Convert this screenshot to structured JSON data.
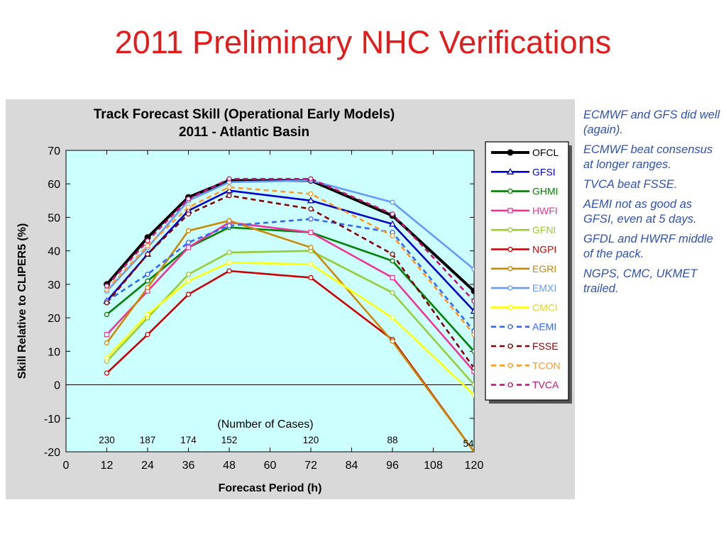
{
  "slide": {
    "title": "2011 Preliminary NHC Verifications"
  },
  "notes": [
    "ECMWF and GFS did well (again).",
    "ECMWF beat consensus at longer ranges.",
    "TVCA beat FSSE.",
    "AEMI not as good as GFSI, even at 5 days.",
    "GFDL and HWRF middle of the pack.",
    "NGPS, CMC, UKMET trailed."
  ],
  "chart_data": {
    "type": "line",
    "title": "Track Forecast Skill (Operational Early Models)",
    "subtitle": "2011 - Atlantic Basin",
    "xlabel": "Forecast Period (h)",
    "ylabel": "Skill Relative to CLIPER5 (%)",
    "xlim": [
      0,
      120
    ],
    "ylim": [
      -20,
      70
    ],
    "xticks": [
      0,
      12,
      24,
      36,
      48,
      60,
      72,
      84,
      96,
      108,
      120
    ],
    "yticks": [
      -20,
      -10,
      0,
      10,
      20,
      30,
      40,
      50,
      60,
      70
    ],
    "x": [
      12,
      24,
      36,
      48,
      72,
      96,
      120
    ],
    "grid": false,
    "legend_position": "right",
    "background_color": "#ccffff",
    "cases_label": "(Number of Cases)",
    "cases": [
      {
        "x": 12,
        "label": "230"
      },
      {
        "x": 24,
        "label": "187"
      },
      {
        "x": 36,
        "label": "174"
      },
      {
        "x": 48,
        "label": "152"
      },
      {
        "x": 72,
        "label": "120"
      },
      {
        "x": 96,
        "label": "88"
      },
      {
        "x": 120,
        "label": "54"
      }
    ],
    "series": [
      {
        "name": "OFCL",
        "color": "#000000",
        "dash": "solid",
        "marker": "dot",
        "values": [
          30,
          44,
          56,
          61,
          61,
          50.5,
          28
        ]
      },
      {
        "name": "GFSI",
        "color": "#0000cc",
        "dash": "solid",
        "marker": "triangle",
        "values": [
          25,
          39,
          52,
          58,
          55,
          48,
          22
        ]
      },
      {
        "name": "GHMI",
        "color": "#008000",
        "dash": "solid",
        "marker": "circle",
        "values": [
          21,
          31,
          41,
          47,
          45.5,
          37,
          10
        ]
      },
      {
        "name": "HWFI",
        "color": "#ee3399",
        "dash": "solid",
        "marker": "square",
        "values": [
          15,
          28,
          41,
          48.5,
          45.5,
          32,
          4
        ]
      },
      {
        "name": "GFNI",
        "color": "#99cc33",
        "dash": "solid",
        "marker": "circle",
        "values": [
          7,
          20,
          33,
          39.5,
          40,
          27.5,
          0
        ]
      },
      {
        "name": "NGPI",
        "color": "#cc0000",
        "dash": "solid",
        "marker": "circle",
        "values": [
          3.5,
          15,
          27,
          34,
          32,
          13.5,
          -20
        ]
      },
      {
        "name": "EGRI",
        "color": "#cc8800",
        "dash": "solid",
        "marker": "circle",
        "values": [
          12.5,
          29,
          46,
          49,
          41,
          13,
          -20
        ]
      },
      {
        "name": "EMXI",
        "color": "#6699ff",
        "dash": "solid",
        "marker": "circle",
        "values": [
          28,
          41,
          55,
          60.5,
          61,
          54.5,
          34.5
        ]
      },
      {
        "name": "CMCI",
        "color": "#ffff00",
        "dash": "solid",
        "marker": "circle",
        "values": [
          8,
          21,
          31,
          36.5,
          36,
          20,
          -3
        ]
      },
      {
        "name": "AEMI",
        "color": "#3366ff",
        "dash": "dashed",
        "marker": "circle",
        "values": [
          25,
          33,
          42.5,
          47.5,
          49.5,
          45.5,
          16
        ]
      },
      {
        "name": "FSSE",
        "color": "#880000",
        "dash": "dashed",
        "marker": "circle",
        "values": [
          24.5,
          39,
          51,
          56.5,
          52.5,
          39,
          5
        ]
      },
      {
        "name": "TCON",
        "color": "#ff9922",
        "dash": "dashed",
        "marker": "circle",
        "values": [
          28.5,
          41.5,
          53,
          59,
          57,
          44.5,
          15
        ]
      },
      {
        "name": "TVCA",
        "color": "#cc1177",
        "dash": "dashed",
        "marker": "circle",
        "values": [
          29.5,
          43,
          55.5,
          61.5,
          61.5,
          51,
          25
        ]
      }
    ]
  }
}
